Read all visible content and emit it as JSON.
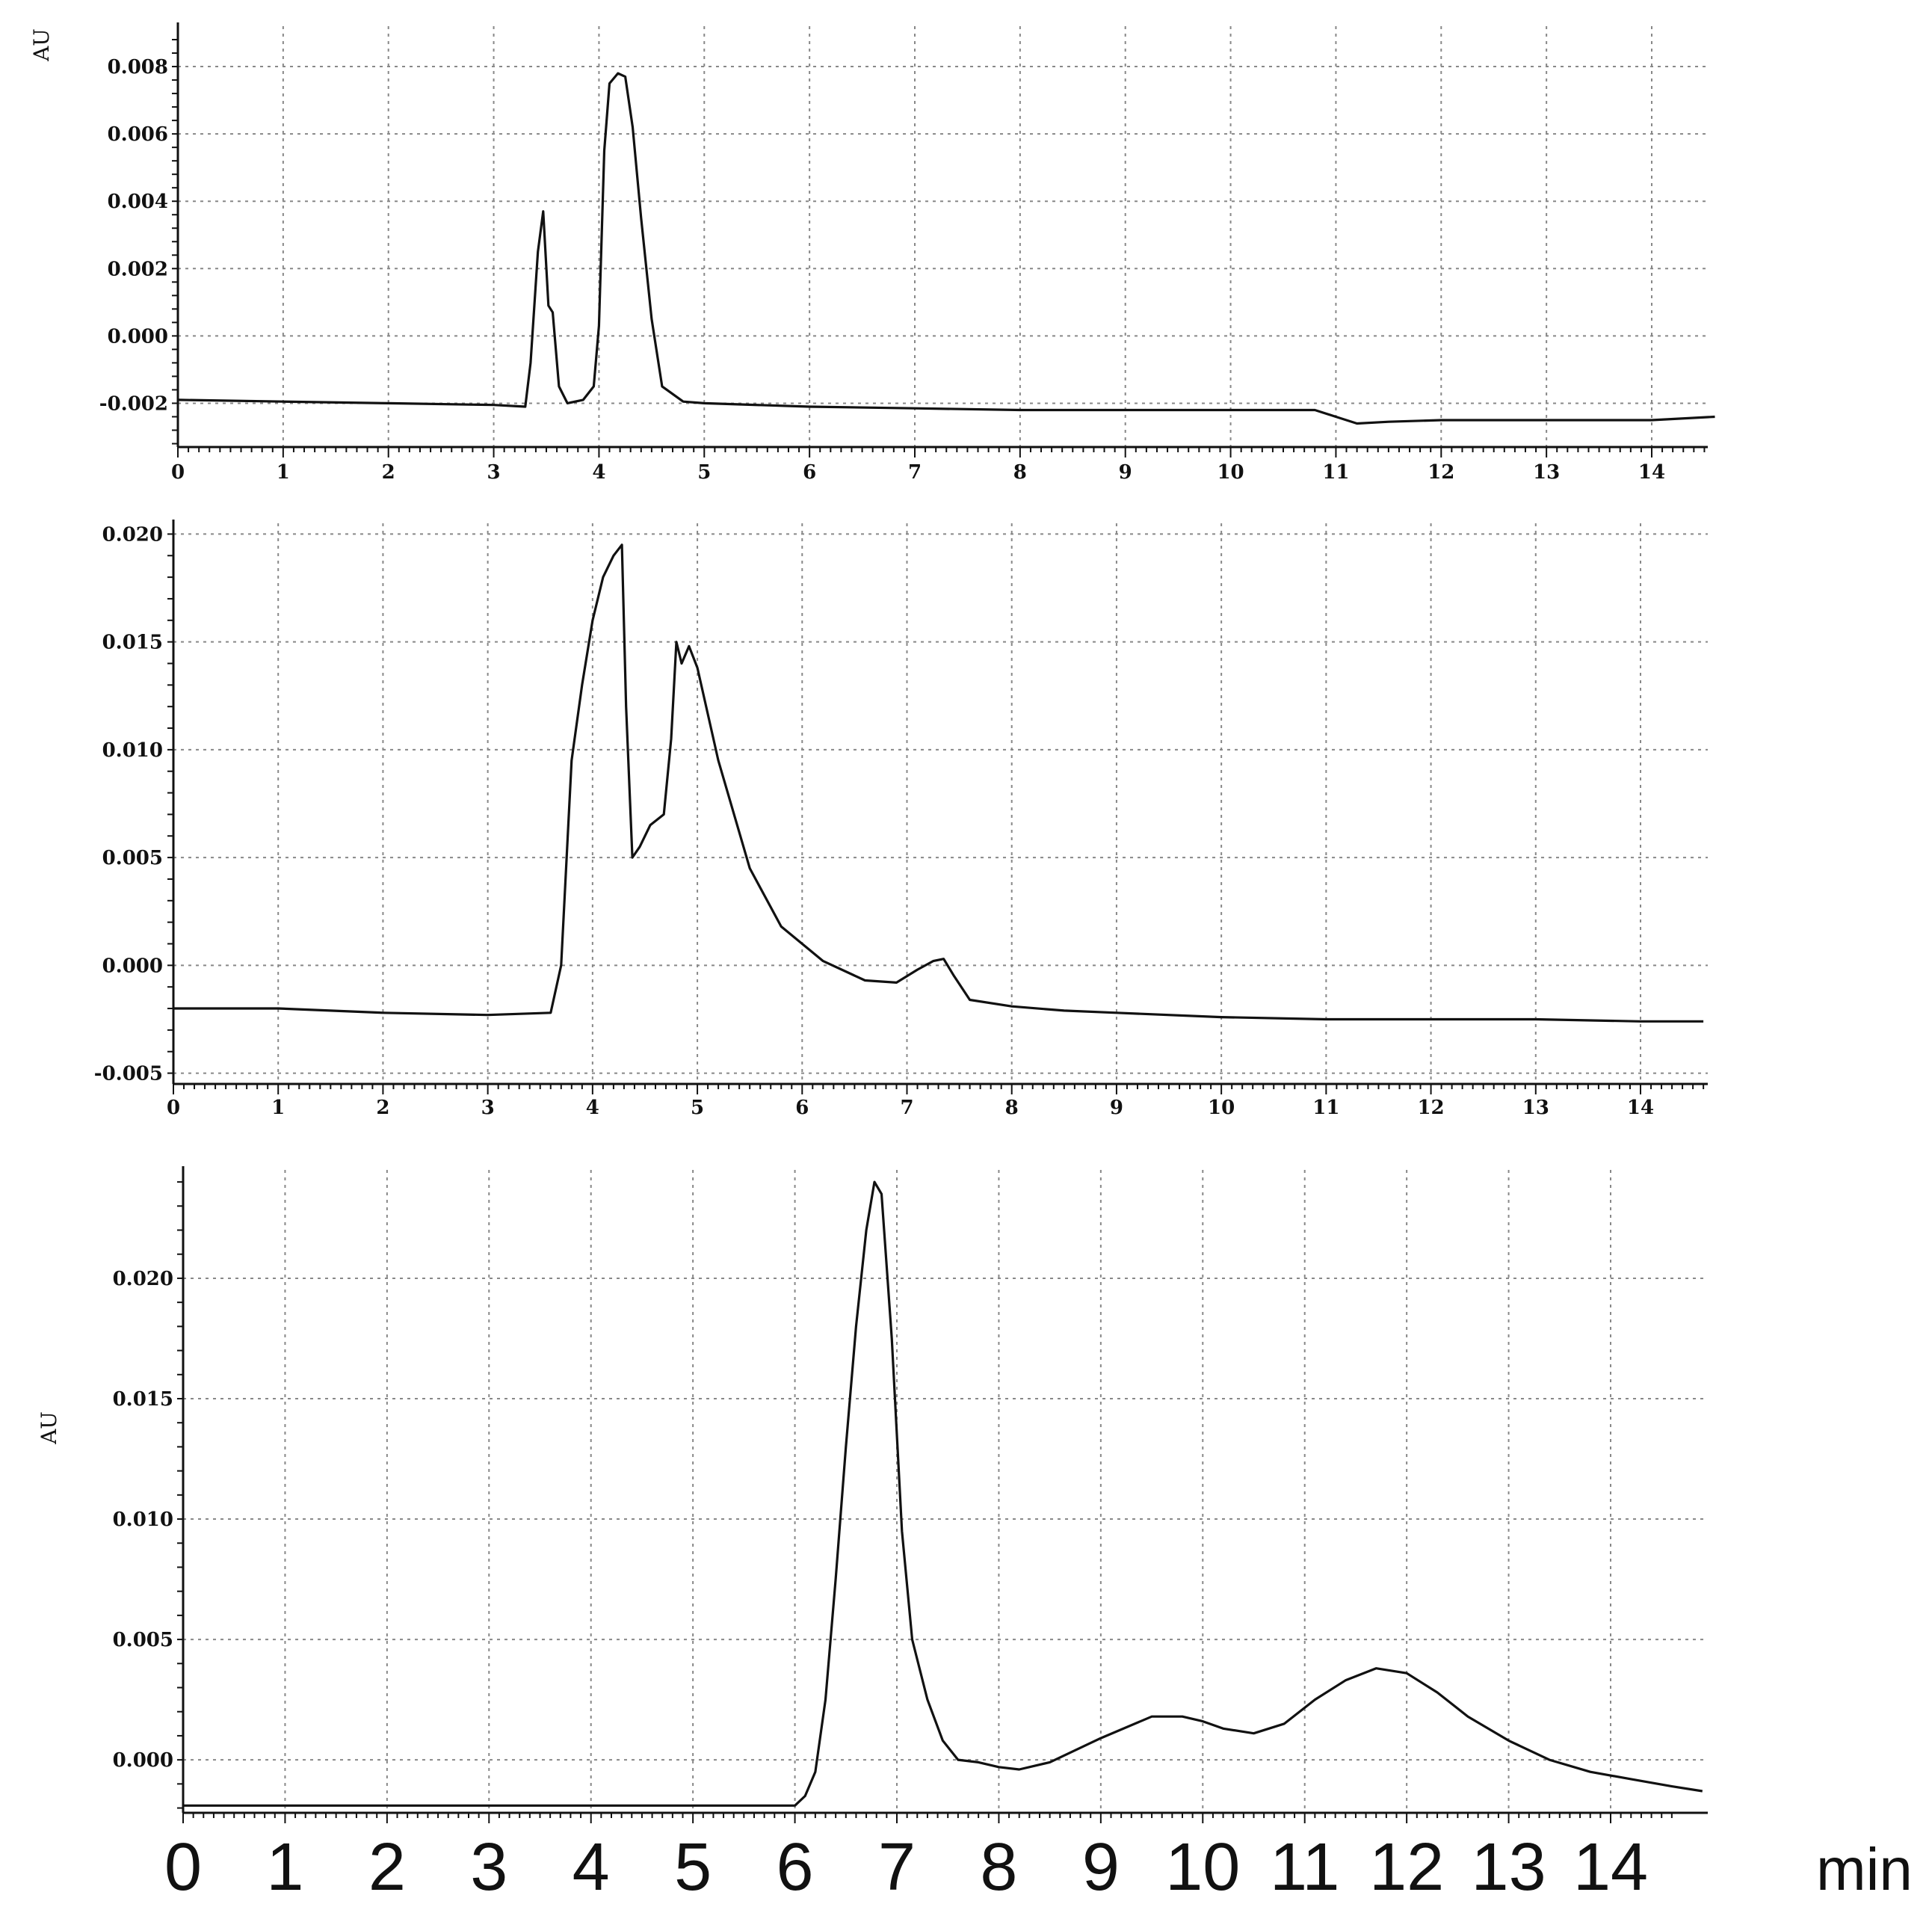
{
  "chart_data": [
    {
      "type": "line",
      "ylabel": "AU",
      "xlim": [
        0,
        14.6
      ],
      "ylim": [
        -0.0033,
        0.0092
      ],
      "xticks": [
        "0",
        "1",
        "2",
        "3",
        "4",
        "5",
        "6",
        "7",
        "8",
        "9",
        "10",
        "11",
        "12",
        "13",
        "14"
      ],
      "yticks": [
        "0.008",
        "0.006",
        "0.004",
        "0.002",
        "0.000",
        "-0.002"
      ],
      "ytick_values": [
        0.008,
        0.006,
        0.004,
        0.002,
        0.0,
        -0.002
      ],
      "grid": true,
      "series": [
        {
          "x": [
            0,
            1,
            2,
            3,
            3.3,
            3.35,
            3.42,
            3.47,
            3.52,
            3.56,
            3.62,
            3.7,
            3.85,
            3.95,
            4.0,
            4.05,
            4.1,
            4.18,
            4.25,
            4.32,
            4.4,
            4.5,
            4.6,
            4.8,
            5,
            6,
            7,
            8,
            9,
            10,
            10.8,
            11.0,
            11.2,
            11.5,
            12,
            13,
            14,
            14.6
          ],
          "y": [
            -0.0019,
            -0.00195,
            -0.002,
            -0.00205,
            -0.0021,
            -0.0008,
            0.0025,
            0.0037,
            0.0009,
            0.0007,
            -0.0015,
            -0.002,
            -0.0019,
            -0.0015,
            0.0003,
            0.0055,
            0.0075,
            0.0078,
            0.0077,
            0.0062,
            0.0035,
            0.0005,
            -0.0015,
            -0.00195,
            -0.002,
            -0.0021,
            -0.00215,
            -0.0022,
            -0.0022,
            -0.0022,
            -0.0022,
            -0.0024,
            -0.0026,
            -0.00255,
            -0.0025,
            -0.0025,
            -0.0025,
            -0.0024
          ]
        }
      ]
    },
    {
      "type": "line",
      "ylabel": "",
      "xlim": [
        0,
        14.6
      ],
      "ylim": [
        -0.0055,
        0.0205
      ],
      "xticks": [
        "0",
        "1",
        "2",
        "3",
        "4",
        "5",
        "6",
        "7",
        "8",
        "9",
        "10",
        "11",
        "12",
        "13",
        "14"
      ],
      "yticks": [
        "0.020",
        "0.015",
        "0.010",
        "0.005",
        "0.000",
        "-0.005"
      ],
      "ytick_values": [
        0.02,
        0.015,
        0.01,
        0.005,
        0.0,
        -0.005
      ],
      "grid": true,
      "series": [
        {
          "x": [
            0,
            1,
            2,
            3,
            3.6,
            3.7,
            3.8,
            3.9,
            4.0,
            4.1,
            4.2,
            4.28,
            4.32,
            4.38,
            4.45,
            4.55,
            4.68,
            4.75,
            4.8,
            4.85,
            4.92,
            5.0,
            5.2,
            5.5,
            5.8,
            6.2,
            6.6,
            6.9,
            7.1,
            7.25,
            7.35,
            7.45,
            7.6,
            8,
            8.5,
            9,
            10,
            11,
            12,
            13,
            14,
            14.6
          ],
          "y": [
            -0.002,
            -0.002,
            -0.0022,
            -0.0023,
            -0.0022,
            0.0,
            0.0095,
            0.013,
            0.016,
            0.018,
            0.019,
            0.0195,
            0.012,
            0.005,
            0.0055,
            0.0065,
            0.007,
            0.0105,
            0.015,
            0.014,
            0.0148,
            0.0138,
            0.0095,
            0.0045,
            0.0018,
            0.0002,
            -0.0007,
            -0.0008,
            -0.0002,
            0.0002,
            0.0003,
            -0.0005,
            -0.0016,
            -0.0019,
            -0.0021,
            -0.0022,
            -0.0024,
            -0.0025,
            -0.0025,
            -0.0025,
            -0.0026,
            -0.0026
          ]
        }
      ]
    },
    {
      "type": "line",
      "ylabel": "AU",
      "xlabel": "min",
      "xlim": [
        0,
        14.9
      ],
      "ylim": [
        -0.0022,
        0.0245
      ],
      "xticks": [
        "0",
        "1",
        "2",
        "3",
        "4",
        "5",
        "6",
        "7",
        "8",
        "9",
        "10",
        "11",
        "12",
        "13",
        "14"
      ],
      "yticks": [
        "0.020",
        "0.015",
        "0.010",
        "0.005",
        "0.000"
      ],
      "ytick_values": [
        0.02,
        0.015,
        0.01,
        0.005,
        0.0
      ],
      "grid": true,
      "series": [
        {
          "x": [
            0,
            1,
            2,
            3,
            4,
            5,
            6.0,
            6.1,
            6.2,
            6.3,
            6.4,
            6.5,
            6.6,
            6.7,
            6.78,
            6.85,
            6.95,
            7.05,
            7.15,
            7.3,
            7.45,
            7.6,
            7.8,
            8.0,
            8.2,
            8.5,
            9.0,
            9.5,
            9.8,
            10.0,
            10.2,
            10.5,
            10.8,
            11.1,
            11.4,
            11.7,
            12.0,
            12.3,
            12.6,
            13.0,
            13.4,
            13.8,
            14.2,
            14.6,
            14.9
          ],
          "y": [
            -0.0019,
            -0.0019,
            -0.0019,
            -0.0019,
            -0.0019,
            -0.0019,
            -0.0019,
            -0.0015,
            -0.0005,
            0.0025,
            0.0075,
            0.013,
            0.018,
            0.022,
            0.024,
            0.0235,
            0.0175,
            0.0095,
            0.005,
            0.0025,
            0.0008,
            0.0,
            -0.0001,
            -0.0003,
            -0.0004,
            -0.0001,
            0.0009,
            0.0018,
            0.0018,
            0.0016,
            0.0013,
            0.0011,
            0.0015,
            0.0025,
            0.0033,
            0.0038,
            0.0036,
            0.0028,
            0.0018,
            0.0008,
            0.0,
            -0.0005,
            -0.0008,
            -0.0011,
            -0.0013
          ]
        }
      ]
    }
  ]
}
